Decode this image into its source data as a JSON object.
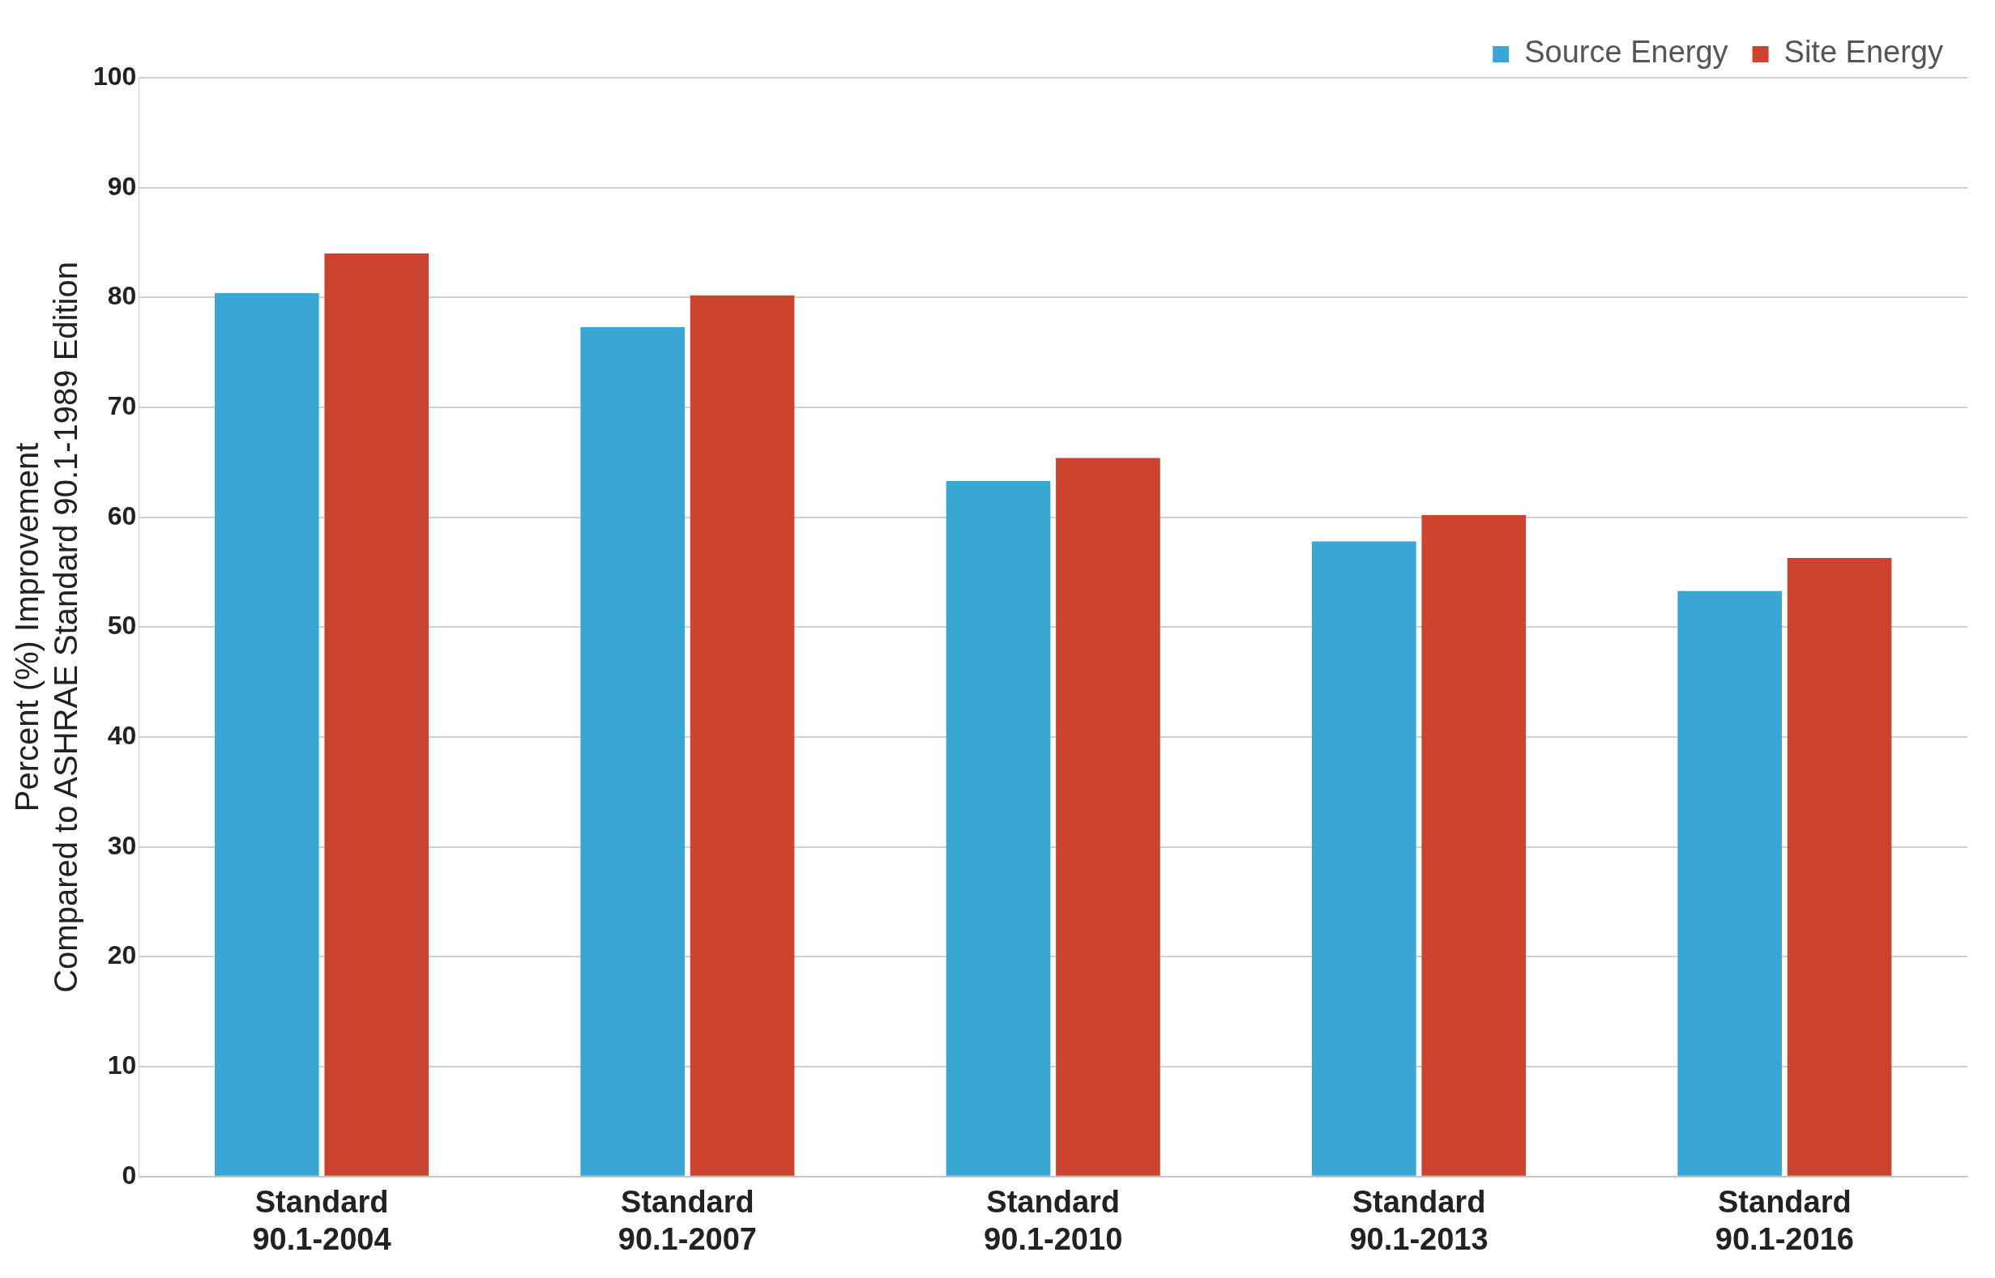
{
  "chart_data": {
    "type": "bar",
    "ylabel": "Percent (%) Improvement\nCompared to ASHRAE Standard 90.1-1989 Edition",
    "categories": [
      "Standard\n90.1-2004",
      "Standard\n90.1-2007",
      "Standard\n90.1-2010",
      "Standard\n90.1-2013",
      "Standard\n90.1-2016"
    ],
    "series": [
      {
        "name": "Source Energy",
        "color": "#3aa6d4",
        "values": [
          80.4,
          77.3,
          63.3,
          57.8,
          53.3
        ]
      },
      {
        "name": "Site Energy",
        "color": "#cc4330",
        "values": [
          84.0,
          80.2,
          65.4,
          60.2,
          56.3
        ]
      }
    ],
    "ylim": [
      0,
      100
    ],
    "yticks": [
      0,
      10,
      20,
      30,
      40,
      50,
      60,
      70,
      80,
      90,
      100
    ],
    "grid": "y",
    "legend": "top right"
  }
}
